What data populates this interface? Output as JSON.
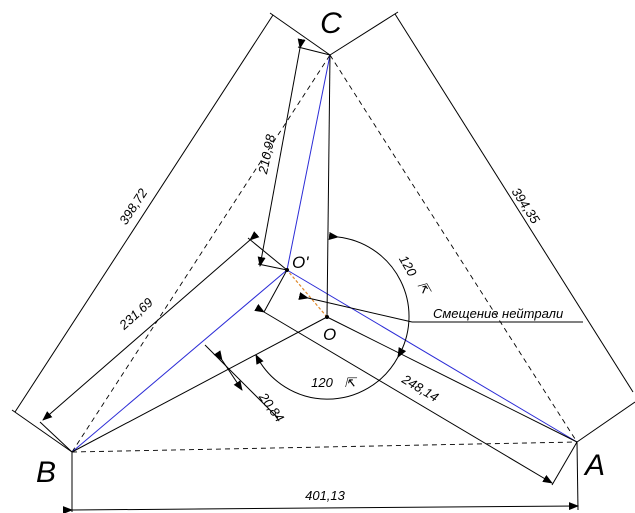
{
  "points": {
    "A": "A",
    "B": "B",
    "C": "C",
    "O": "O",
    "O_prime": "O'"
  },
  "dimensions": {
    "BC": "398,72",
    "CA": "394,35",
    "AB": "401,13",
    "O_prime_C": "210,98",
    "O_prime_B": "231,69",
    "O_prime_A": "248,14",
    "offset": "20,84"
  },
  "angles": {
    "upper": "120",
    "lower": "120"
  },
  "annotation": {
    "neutral_shift": "Смещение нейтрали"
  }
}
